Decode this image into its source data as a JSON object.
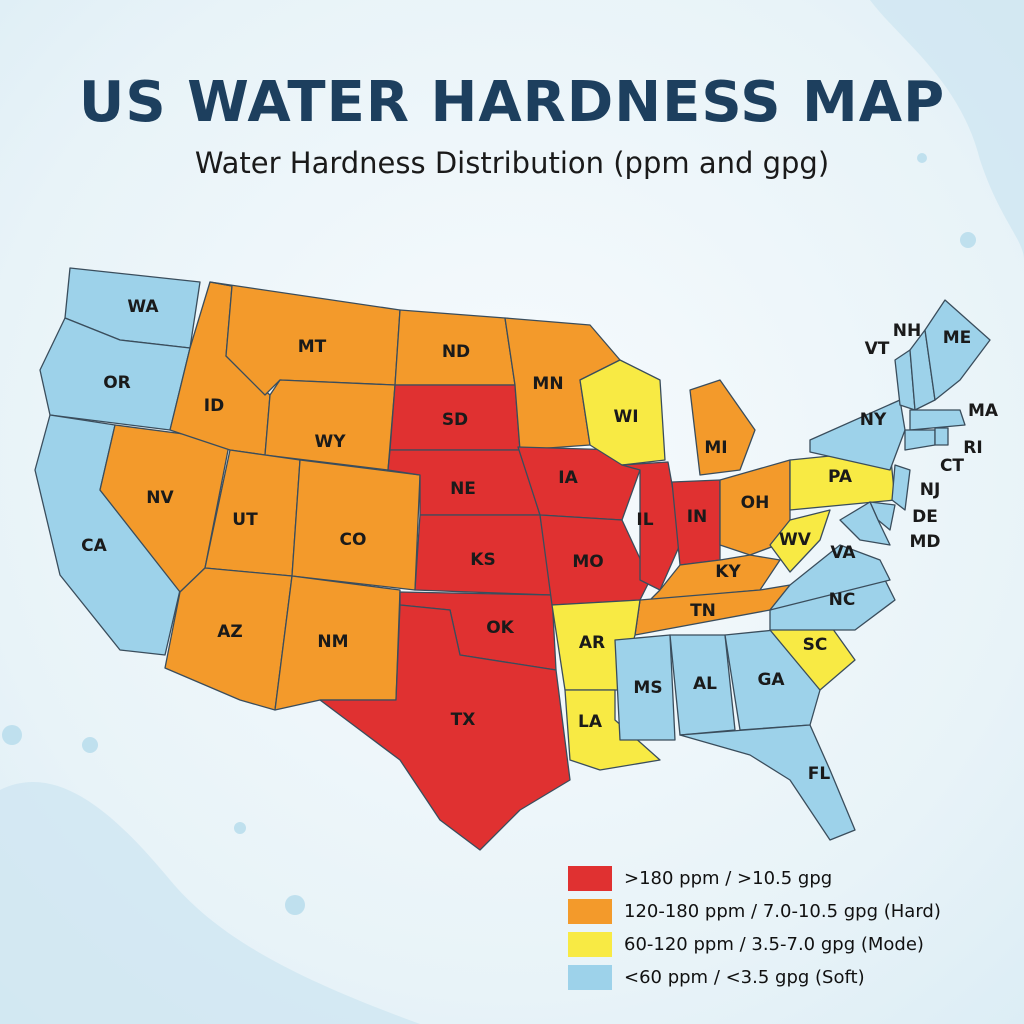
{
  "header": {
    "title": "US WATER HARDNESS MAP",
    "subtitle": "Water Hardness Distribution (ppm and gpg)"
  },
  "legend": [
    {
      "label": ">180 ppm / >10.5 gpg",
      "color": "#e03131"
    },
    {
      "label": "120-180 ppm / 7.0-10.5 gpg (Hard)",
      "color": "#f39a2b"
    },
    {
      "label": "60-120 ppm / 3.5-7.0 gpg (Mode)",
      "color": "#f8ea44"
    },
    {
      "label": "<60 ppm / <3.5 gpg (Soft)",
      "color": "#9dd2ea"
    }
  ],
  "states": [
    {
      "label": "WA",
      "category": 3
    },
    {
      "label": "OR",
      "category": 3
    },
    {
      "label": "CA",
      "category": 3
    },
    {
      "label": "NV",
      "category": 1
    },
    {
      "label": "ID",
      "category": 1
    },
    {
      "label": "MT",
      "category": 1
    },
    {
      "label": "WY",
      "category": 1
    },
    {
      "label": "UT",
      "category": 1
    },
    {
      "label": "CO",
      "category": 1
    },
    {
      "label": "AZ",
      "category": 1
    },
    {
      "label": "NM",
      "category": 1
    },
    {
      "label": "ND",
      "category": 1
    },
    {
      "label": "SD",
      "category": 0
    },
    {
      "label": "NE",
      "category": 0
    },
    {
      "label": "KS",
      "category": 0
    },
    {
      "label": "OK",
      "category": 0
    },
    {
      "label": "TX",
      "category": 0
    },
    {
      "label": "MN",
      "category": 1
    },
    {
      "label": "IA",
      "category": 0
    },
    {
      "label": "MO",
      "category": 0
    },
    {
      "label": "WI",
      "category": 2
    },
    {
      "label": "IL",
      "category": 0
    },
    {
      "label": "IN",
      "category": 0
    },
    {
      "label": "MI",
      "category": 1
    },
    {
      "label": "OH",
      "category": 1
    },
    {
      "label": "KY",
      "category": 1
    },
    {
      "label": "TN",
      "category": 1
    },
    {
      "label": "AR",
      "category": 2
    },
    {
      "label": "LA",
      "category": 2
    },
    {
      "label": "MS",
      "category": 3
    },
    {
      "label": "AL",
      "category": 3
    },
    {
      "label": "GA",
      "category": 3
    },
    {
      "label": "FL",
      "category": 3
    },
    {
      "label": "SC",
      "category": 2
    },
    {
      "label": "NC",
      "category": 3
    },
    {
      "label": "VA",
      "category": 3
    },
    {
      "label": "WV",
      "category": 2
    },
    {
      "label": "PA",
      "category": 2
    },
    {
      "label": "NY",
      "category": 3
    },
    {
      "label": "NJ",
      "category": 3
    },
    {
      "label": "DE",
      "category": 3
    },
    {
      "label": "MD",
      "category": 3
    },
    {
      "label": "VT",
      "category": 3
    },
    {
      "label": "NH",
      "category": 3
    },
    {
      "label": "ME",
      "category": 3
    },
    {
      "label": "MA",
      "category": 3
    },
    {
      "label": "CT",
      "category": 3
    },
    {
      "label": "RI",
      "category": 3
    }
  ]
}
